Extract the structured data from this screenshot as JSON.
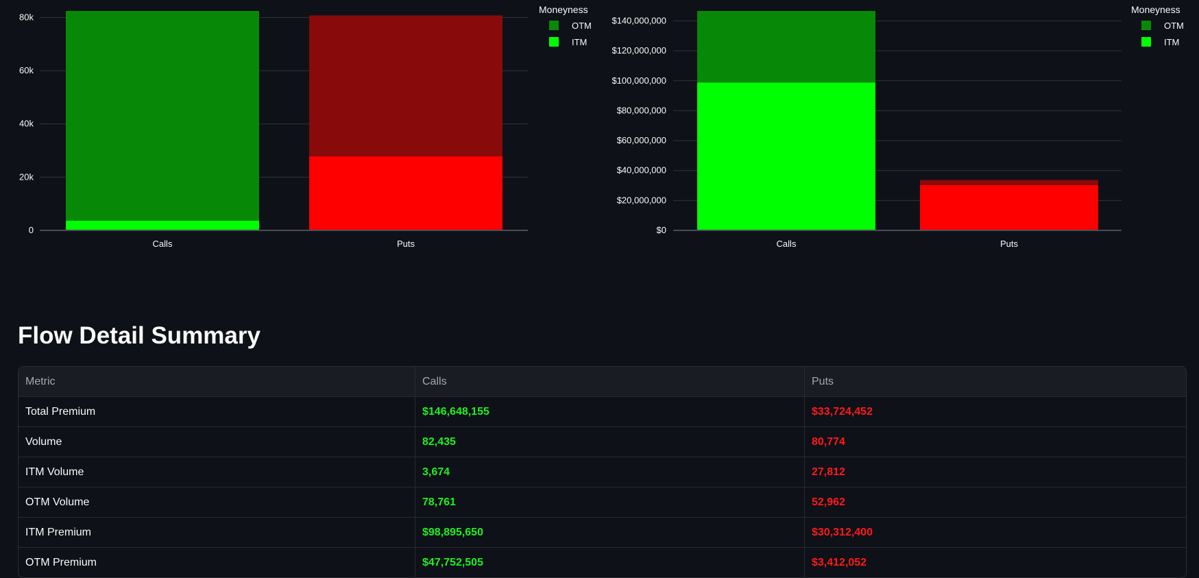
{
  "chart_data": [
    {
      "type": "bar",
      "stacked": true,
      "categories": [
        "Calls",
        "Puts"
      ],
      "series": [
        {
          "name": "ITM",
          "values": [
            3674,
            27812
          ]
        },
        {
          "name": "OTM",
          "values": [
            78761,
            52962
          ]
        }
      ],
      "ylim": [
        0,
        82435
      ],
      "yticks": [
        0,
        20000,
        40000,
        60000,
        80000
      ],
      "ytick_labels": [
        "0",
        "20k",
        "40k",
        "60k",
        "80k"
      ],
      "legend_title": "Moneyness",
      "legend_entries": [
        "OTM",
        "ITM"
      ],
      "legend_position": "top-right",
      "grid": true,
      "colors": {
        "Calls": {
          "ITM": "#00ff00",
          "OTM": "#078907"
        },
        "Puts": {
          "ITM": "#ff0000",
          "OTM": "#880a0a"
        }
      },
      "legend_colors": {
        "OTM": "#078907",
        "ITM": "#00ff00"
      }
    },
    {
      "type": "bar",
      "stacked": true,
      "categories": [
        "Calls",
        "Puts"
      ],
      "series": [
        {
          "name": "ITM",
          "values": [
            98895650,
            30312400
          ]
        },
        {
          "name": "OTM",
          "values": [
            47752505,
            3412052
          ]
        }
      ],
      "ylim": [
        0,
        146648155
      ],
      "yticks": [
        0,
        20000000,
        40000000,
        60000000,
        80000000,
        100000000,
        120000000,
        140000000
      ],
      "ytick_labels": [
        "$0",
        "$20,000,000",
        "$40,000,000",
        "$60,000,000",
        "$80,000,000",
        "$100,000,000",
        "$120,000,000",
        "$140,000,000"
      ],
      "legend_title": "Moneyness",
      "legend_entries": [
        "OTM",
        "ITM"
      ],
      "legend_position": "top-right",
      "grid": true,
      "colors": {
        "Calls": {
          "ITM": "#00ff00",
          "OTM": "#078907"
        },
        "Puts": {
          "ITM": "#ff0000",
          "OTM": "#880a0a"
        }
      },
      "legend_colors": {
        "OTM": "#078907",
        "ITM": "#00ff00"
      }
    }
  ],
  "summary": {
    "title": "Flow Detail Summary",
    "columns": [
      "Metric",
      "Calls",
      "Puts"
    ],
    "rows": [
      {
        "metric": "Total Premium",
        "calls": "$146,648,155",
        "puts": "$33,724,452"
      },
      {
        "metric": "Volume",
        "calls": "82,435",
        "puts": "80,774"
      },
      {
        "metric": "ITM Volume",
        "calls": "3,674",
        "puts": "27,812"
      },
      {
        "metric": "OTM Volume",
        "calls": "78,761",
        "puts": "52,962"
      },
      {
        "metric": "ITM Premium",
        "calls": "$98,895,650",
        "puts": "$30,312,400"
      },
      {
        "metric": "OTM Premium",
        "calls": "$47,752,505",
        "puts": "$3,412,052"
      }
    ],
    "colors": {
      "calls": "#1ef11e",
      "puts": "#ff1a1a"
    }
  }
}
